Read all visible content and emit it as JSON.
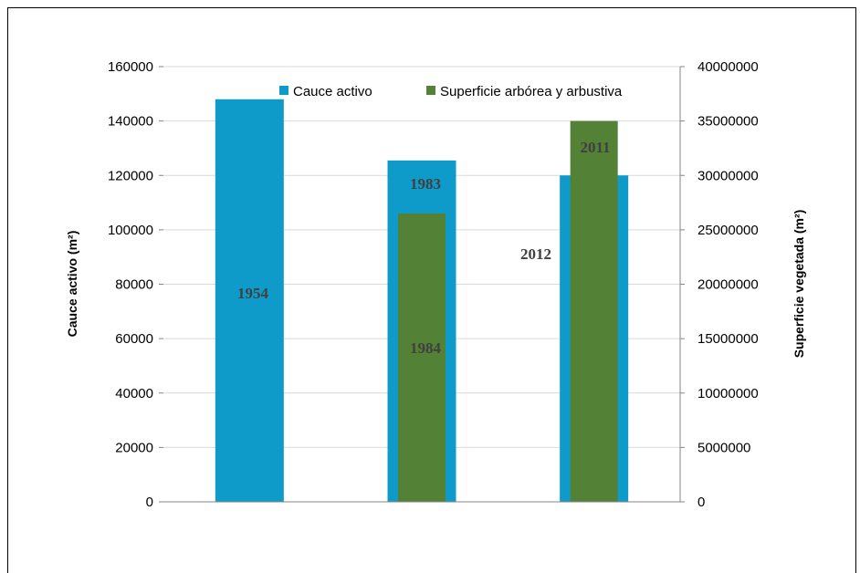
{
  "chart_data": {
    "type": "bar",
    "categories": [
      "1954",
      "1983/1984",
      "2012/2011"
    ],
    "series": [
      {
        "name": "Cauce activo",
        "axis": "left",
        "color": "#0f9bc9",
        "values": [
          148000,
          125500,
          120000
        ],
        "labels": [
          "1954",
          "1983",
          "2012"
        ]
      },
      {
        "name": "Superficie arbórea y arbustiva",
        "axis": "right",
        "color": "#538135",
        "values": [
          null,
          26500000,
          35000000
        ],
        "labels": [
          "",
          "1984",
          "2011"
        ]
      }
    ],
    "ylabel": "Cauce activo (m²)",
    "y2label": "Superficie vegetada (m²)",
    "ylim": [
      0,
      160000
    ],
    "y2lim": [
      0,
      40000000
    ],
    "yticks": [
      "0",
      "20000",
      "40000",
      "60000",
      "80000",
      "100000",
      "120000",
      "140000",
      "160000"
    ],
    "y2ticks": [
      "0",
      "5000000",
      "10000000",
      "15000000",
      "20000000",
      "25000000",
      "30000000",
      "35000000",
      "40000000"
    ],
    "grid": true,
    "legend": "top-right"
  }
}
